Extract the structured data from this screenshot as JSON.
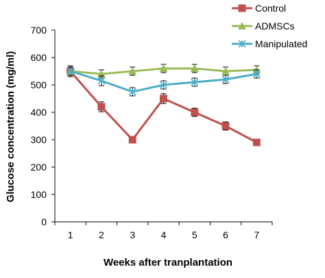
{
  "chart_data": {
    "type": "line",
    "xlabel": "Weeks after tranplantation",
    "ylabel": "Glucose concentration (mg/ml)",
    "x": [
      1,
      2,
      3,
      4,
      5,
      6,
      7
    ],
    "ylim": [
      0,
      700
    ],
    "yticks": [
      0,
      100,
      200,
      300,
      400,
      500,
      600,
      700
    ],
    "grid": false,
    "legend": "top-right",
    "series": [
      {
        "name": "Control",
        "color": "#C0504D",
        "marker": "square",
        "values": [
          550,
          420,
          300,
          450,
          400,
          350,
          290
        ],
        "errors": [
          20,
          18,
          10,
          18,
          15,
          15,
          10
        ]
      },
      {
        "name": "ADMSCs",
        "color": "#9BBB59",
        "marker": "triangle",
        "values": [
          550,
          540,
          550,
          560,
          560,
          550,
          555
        ],
        "errors": [
          15,
          15,
          15,
          15,
          15,
          15,
          15
        ]
      },
      {
        "name": "Manipulated",
        "color": "#4BACC6",
        "marker": "x",
        "values": [
          550,
          515,
          475,
          500,
          510,
          520,
          540
        ],
        "errors": [
          20,
          18,
          15,
          15,
          15,
          15,
          15
        ]
      }
    ]
  }
}
